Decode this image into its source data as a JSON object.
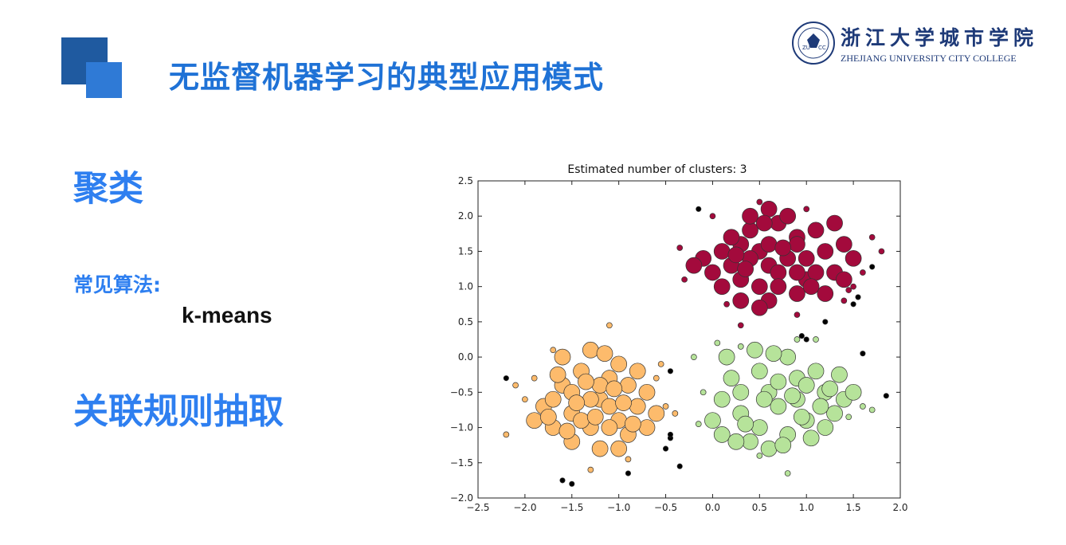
{
  "slide": {
    "title": "无监督机器学习的典型应用模式",
    "logo_cn": "浙江大学城市学院",
    "logo_en": "ZHEJIANG UNIVERSITY CITY COLLEGE",
    "logo_seal_text": "ZUCC",
    "section1": "聚类",
    "algo_label": "常见算法:",
    "algo_value": "k-means",
    "section2": "关联规则抽取",
    "colors": {
      "title": "#1f72d6",
      "heading": "#2e7ff0",
      "deco_dark": "#1f5aa0",
      "deco_light": "#2f7ad6"
    }
  },
  "chart_data": {
    "type": "scatter",
    "title": "Estimated number of clusters: 3",
    "xlabel": "",
    "ylabel": "",
    "xlim": [
      -2.5,
      2.0
    ],
    "ylim": [
      -2.0,
      2.5
    ],
    "xticks": [
      "−2.5",
      "−2.0",
      "−1.5",
      "−1.0",
      "−0.5",
      "0.0",
      "0.5",
      "1.0",
      "1.5",
      "2.0"
    ],
    "yticks": [
      "2.5",
      "2.0",
      "1.5",
      "1.0",
      "0.5",
      "0.0",
      "−0.5",
      "−1.0",
      "−1.5",
      "−2.0"
    ],
    "grid": false,
    "series": [
      {
        "color": "#a30a3c",
        "points": [
          [
            0.6,
            1.3
          ],
          [
            0.3,
            1.6
          ],
          [
            0.9,
            1.7
          ],
          [
            0.5,
            1.0
          ],
          [
            1.0,
            1.1
          ],
          [
            0.2,
            1.3
          ],
          [
            0.7,
            1.9
          ],
          [
            1.2,
            1.5
          ],
          [
            0.4,
            1.8
          ],
          [
            0.8,
            1.4
          ],
          [
            1.3,
            1.2
          ],
          [
            0.1,
            1.5
          ],
          [
            0.6,
            0.8
          ],
          [
            0.3,
            1.1
          ],
          [
            1.1,
            1.8
          ],
          [
            0.9,
            0.9
          ],
          [
            0.5,
            1.5
          ],
          [
            0.7,
            1.2
          ],
          [
            1.4,
            1.6
          ],
          [
            0.0,
            1.2
          ],
          [
            -0.1,
            1.4
          ],
          [
            0.4,
            2.0
          ],
          [
            0.8,
            2.0
          ],
          [
            1.2,
            0.9
          ],
          [
            0.6,
            1.6
          ],
          [
            0.3,
            0.8
          ],
          [
            1.0,
            1.4
          ],
          [
            1.5,
            1.4
          ],
          [
            0.2,
            1.7
          ],
          [
            0.9,
            1.2
          ],
          [
            0.5,
            0.7
          ],
          [
            1.3,
            1.9
          ],
          [
            -0.2,
            1.3
          ],
          [
            0.7,
            1.0
          ],
          [
            1.1,
            1.2
          ],
          [
            0.4,
            1.4
          ],
          [
            0.6,
            2.1
          ],
          [
            1.4,
            1.1
          ],
          [
            0.1,
            1.0
          ],
          [
            0.9,
            1.6
          ],
          [
            0.35,
            1.25
          ],
          [
            0.75,
            1.55
          ],
          [
            1.05,
            1.0
          ],
          [
            0.55,
            1.9
          ],
          [
            0.25,
            1.45
          ]
        ],
        "small_points": [
          [
            0.0,
            2.0
          ],
          [
            1.8,
            1.5
          ],
          [
            1.6,
            1.2
          ],
          [
            -0.3,
            1.1
          ],
          [
            1.4,
            0.8
          ],
          [
            0.5,
            2.2
          ],
          [
            1.7,
            1.7
          ],
          [
            -0.35,
            1.55
          ],
          [
            0.3,
            0.45
          ],
          [
            1.0,
            2.1
          ],
          [
            1.5,
            1.0
          ],
          [
            0.9,
            0.6
          ],
          [
            1.45,
            0.95
          ],
          [
            0.15,
            0.75
          ]
        ]
      },
      {
        "color": "#fdbb6c",
        "points": [
          [
            -1.2,
            -0.6
          ],
          [
            -1.5,
            -0.8
          ],
          [
            -0.9,
            -0.4
          ],
          [
            -1.3,
            -1.0
          ],
          [
            -1.0,
            -0.9
          ],
          [
            -1.6,
            -0.4
          ],
          [
            -1.4,
            -0.2
          ],
          [
            -0.8,
            -0.7
          ],
          [
            -1.1,
            -0.3
          ],
          [
            -1.7,
            -1.0
          ],
          [
            -1.3,
            -0.6
          ],
          [
            -0.7,
            -0.5
          ],
          [
            -1.5,
            -1.2
          ],
          [
            -1.0,
            -0.1
          ],
          [
            -1.2,
            -1.3
          ],
          [
            -1.8,
            -0.7
          ],
          [
            -0.9,
            -1.1
          ],
          [
            -1.6,
            0.0
          ],
          [
            -1.1,
            -0.7
          ],
          [
            -0.6,
            -0.8
          ],
          [
            -1.4,
            -0.9
          ],
          [
            -1.3,
            0.1
          ],
          [
            -1.9,
            -0.9
          ],
          [
            -0.8,
            -0.2
          ],
          [
            -1.2,
            -0.4
          ],
          [
            -1.0,
            -1.3
          ],
          [
            -1.5,
            -0.5
          ],
          [
            -1.7,
            -0.6
          ],
          [
            -0.7,
            -1.0
          ],
          [
            -1.1,
            -1.0
          ],
          [
            -1.35,
            -0.35
          ],
          [
            -1.55,
            -1.05
          ],
          [
            -0.95,
            -0.65
          ],
          [
            -1.25,
            -0.85
          ],
          [
            -1.65,
            -0.25
          ],
          [
            -0.85,
            -0.95
          ],
          [
            -1.45,
            -0.65
          ],
          [
            -1.15,
            0.05
          ],
          [
            -1.75,
            -0.85
          ],
          [
            -1.05,
            -0.45
          ]
        ],
        "small_points": [
          [
            -2.0,
            -0.6
          ],
          [
            -2.2,
            -1.1
          ],
          [
            -0.5,
            -0.7
          ],
          [
            -0.4,
            -0.8
          ],
          [
            -1.1,
            0.45
          ],
          [
            -1.7,
            0.1
          ],
          [
            -0.6,
            -0.3
          ],
          [
            -1.9,
            -0.3
          ],
          [
            -1.3,
            -1.6
          ],
          [
            -0.9,
            -1.45
          ],
          [
            -0.55,
            -0.1
          ],
          [
            -2.1,
            -0.4
          ]
        ]
      },
      {
        "color": "#b6e39a",
        "points": [
          [
            0.6,
            -0.5
          ],
          [
            0.9,
            -0.3
          ],
          [
            0.3,
            -0.8
          ],
          [
            1.0,
            -0.9
          ],
          [
            0.5,
            -0.2
          ],
          [
            1.2,
            -0.5
          ],
          [
            0.1,
            -0.6
          ],
          [
            0.8,
            -1.1
          ],
          [
            0.4,
            -1.2
          ],
          [
            1.3,
            -0.8
          ],
          [
            0.7,
            -0.7
          ],
          [
            0.2,
            -0.3
          ],
          [
            1.1,
            -0.2
          ],
          [
            0.5,
            -1.0
          ],
          [
            0.9,
            -0.6
          ],
          [
            1.4,
            -0.6
          ],
          [
            0.0,
            -0.9
          ],
          [
            0.6,
            -1.3
          ],
          [
            1.0,
            -0.4
          ],
          [
            0.3,
            -0.5
          ],
          [
            0.8,
            0.0
          ],
          [
            1.2,
            -1.0
          ],
          [
            0.45,
            0.1
          ],
          [
            1.5,
            -0.5
          ],
          [
            0.1,
            -1.1
          ],
          [
            0.7,
            -0.35
          ],
          [
            0.95,
            -0.85
          ],
          [
            0.35,
            -0.95
          ],
          [
            1.15,
            -0.7
          ],
          [
            0.55,
            -0.6
          ],
          [
            0.15,
            0.0
          ],
          [
            1.35,
            -0.25
          ],
          [
            0.75,
            -1.25
          ],
          [
            0.25,
            -1.2
          ],
          [
            1.05,
            -1.15
          ],
          [
            0.65,
            0.05
          ],
          [
            1.25,
            -0.45
          ],
          [
            0.85,
            -0.55
          ]
        ],
        "small_points": [
          [
            0.8,
            -1.65
          ],
          [
            1.6,
            -0.7
          ],
          [
            -0.1,
            -0.5
          ],
          [
            0.3,
            0.15
          ],
          [
            1.7,
            -0.75
          ],
          [
            0.5,
            -1.4
          ],
          [
            -0.15,
            -0.95
          ],
          [
            1.1,
            0.25
          ],
          [
            0.9,
            0.25
          ],
          [
            -0.2,
            0.0
          ],
          [
            0.05,
            0.2
          ],
          [
            1.45,
            -0.85
          ]
        ]
      }
    ],
    "noise": {
      "color": "#000000",
      "points": [
        [
          -1.6,
          -1.75
        ],
        [
          -1.5,
          -1.8
        ],
        [
          -0.9,
          -1.65
        ],
        [
          -0.45,
          -1.15
        ],
        [
          -0.35,
          -1.55
        ],
        [
          -0.5,
          -1.3
        ],
        [
          -2.2,
          -0.3
        ],
        [
          -0.45,
          -0.2
        ],
        [
          1.85,
          -0.55
        ],
        [
          1.6,
          0.05
        ],
        [
          1.0,
          0.25
        ],
        [
          1.2,
          0.5
        ],
        [
          1.5,
          0.75
        ],
        [
          1.55,
          0.85
        ],
        [
          1.7,
          1.28
        ],
        [
          -0.15,
          2.1
        ],
        [
          -0.45,
          -1.1
        ],
        [
          0.95,
          0.3
        ]
      ]
    }
  }
}
